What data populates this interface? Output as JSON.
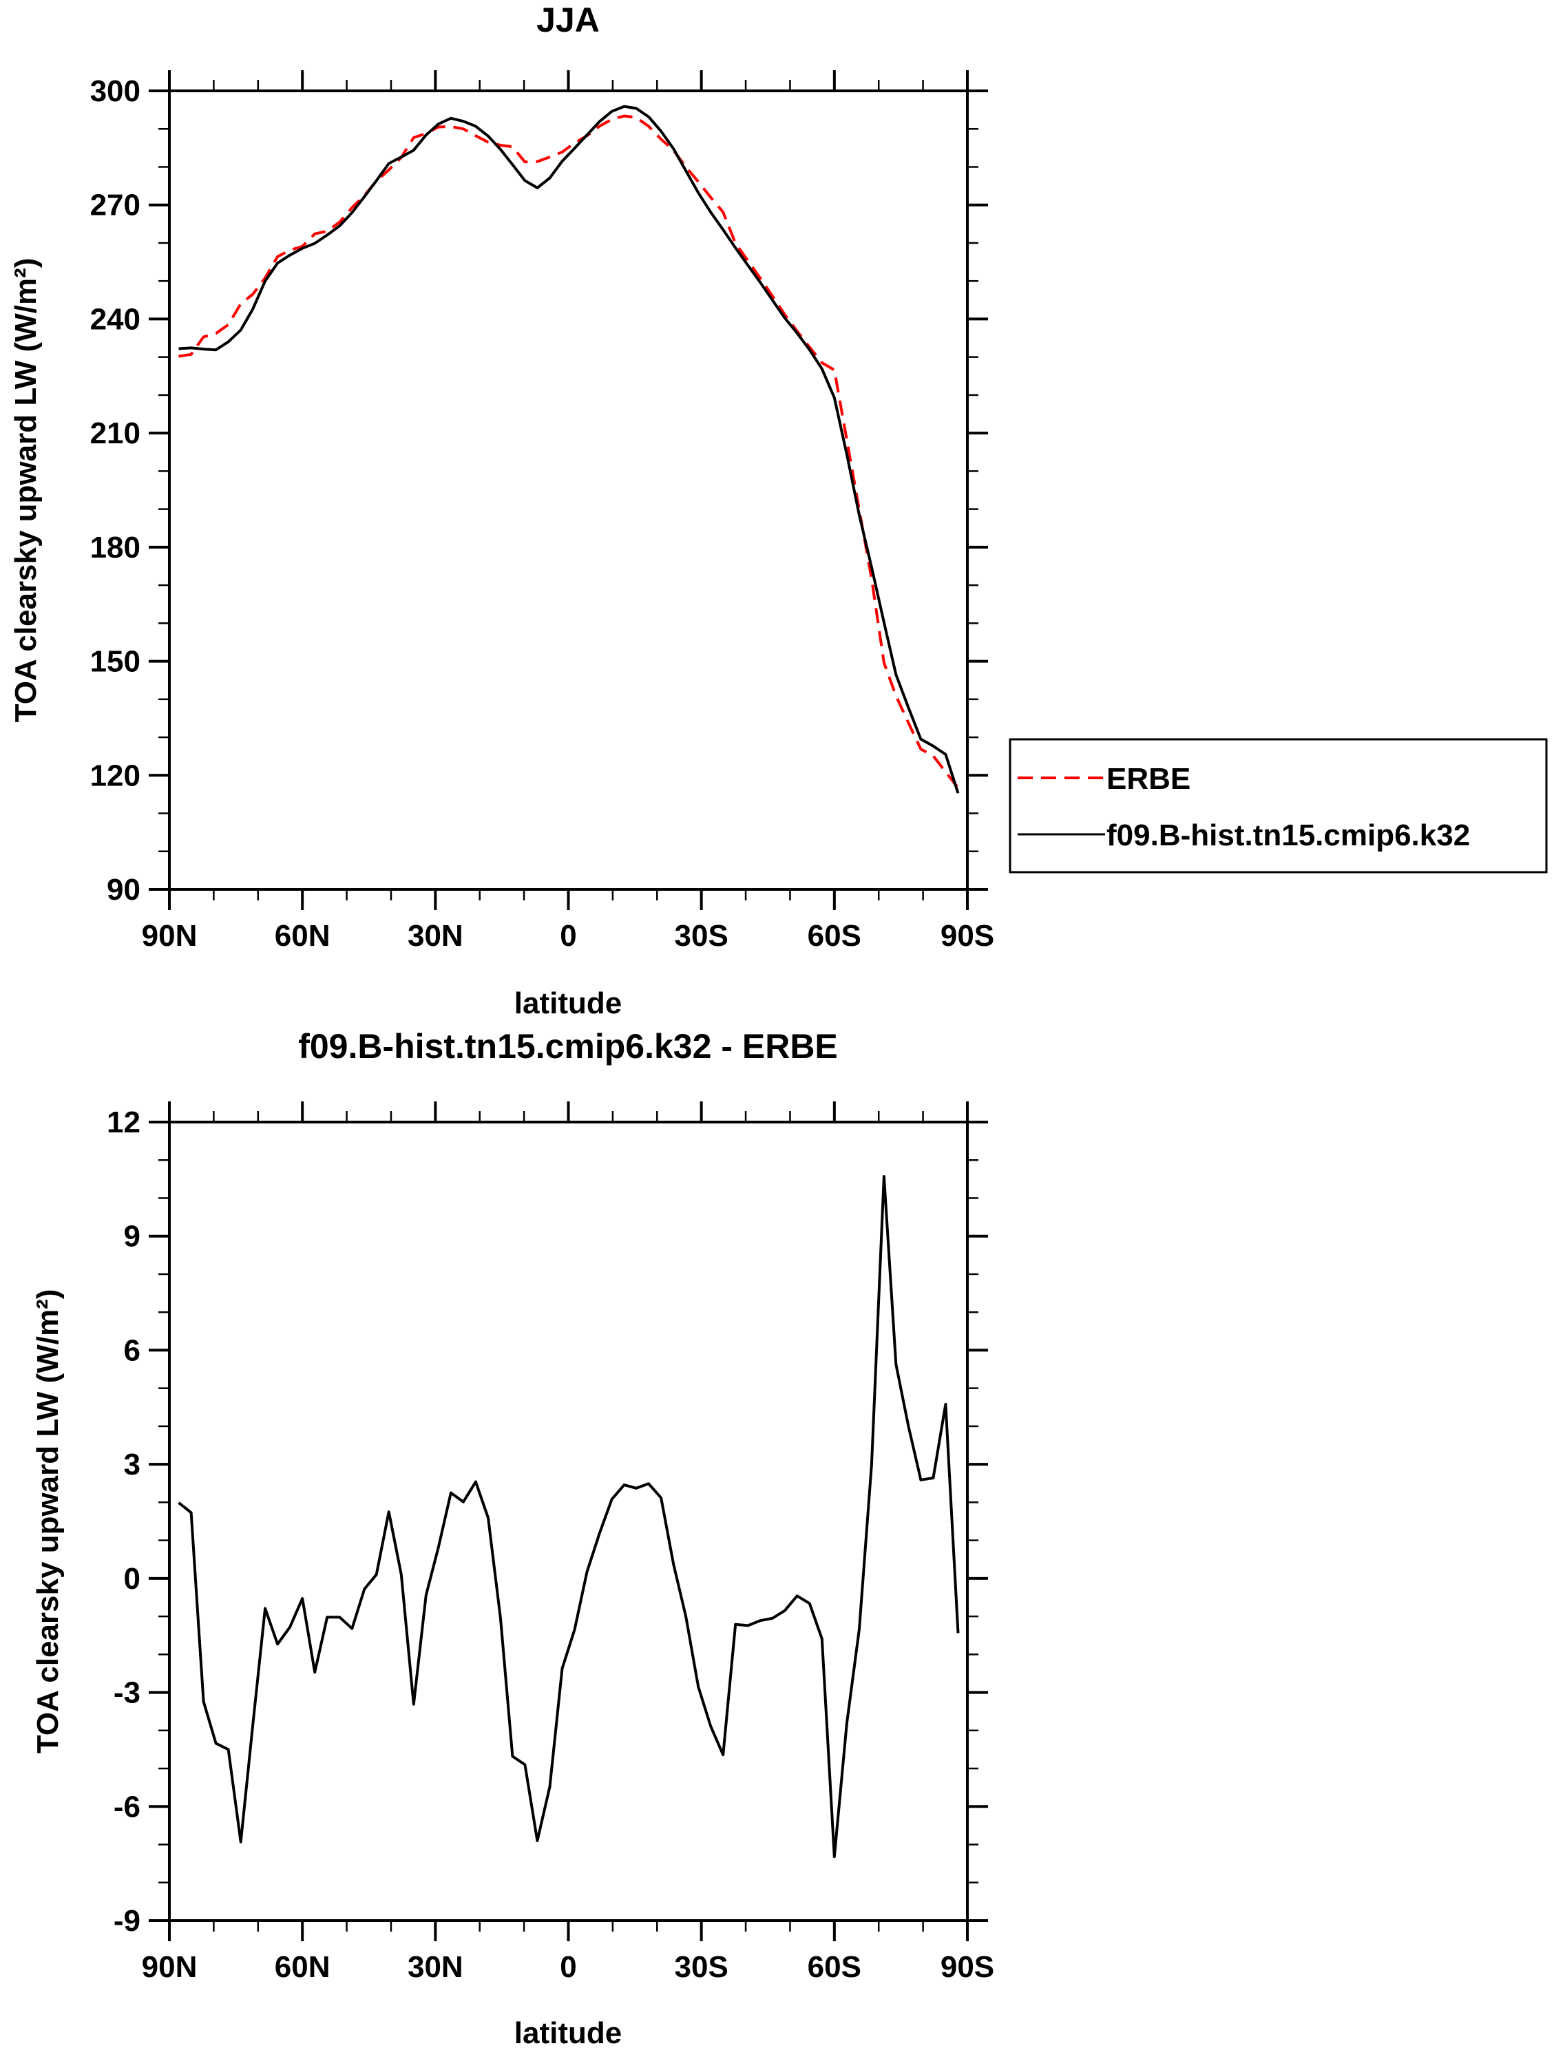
{
  "chart_data": [
    {
      "type": "line",
      "title": "JJA",
      "xlabel": "latitude",
      "ylabel": "TOA clearsky upward LW (W/m²)",
      "xlim": [
        90,
        -90
      ],
      "ylim": [
        90,
        300
      ],
      "xticks": [
        90,
        60,
        30,
        0,
        -30,
        -60,
        -90
      ],
      "xtick_labels": [
        "90N",
        "60N",
        "30N",
        "0",
        "30S",
        "60S",
        "90S"
      ],
      "yticks": [
        90,
        120,
        150,
        180,
        210,
        240,
        270,
        300
      ],
      "ytick_labels": [
        "90",
        "120",
        "150",
        "180",
        "210",
        "240",
        "270",
        "300"
      ],
      "x_minor_step": 10,
      "y_minor_step": 10,
      "grid": false,
      "legend": {
        "placement": "right",
        "entries": [
          "ERBE",
          "f09.B-hist.tn15.cmip6.k32"
        ]
      },
      "series": [
        {
          "name": "ERBE",
          "color": "#ff0000",
          "dash": "dashed",
          "values": [
            230.2,
            230.7,
            235.3,
            236.2,
            238.5,
            244.0,
            246.5,
            250.8,
            256.4,
            258.1,
            259.1,
            262.4,
            263.1,
            265.5,
            269.3,
            272.5,
            276.3,
            279.2,
            282.5,
            287.7,
            288.8,
            290.5,
            290.6,
            290.0,
            288.2,
            286.5,
            285.7,
            285.3,
            281.3,
            281.4,
            282.6,
            283.9,
            286.3,
            288.2,
            290.7,
            292.5,
            293.4,
            293.0,
            290.7,
            287.3,
            284.4,
            280.0,
            276.1,
            272.0,
            268.1,
            259.9,
            255.3,
            250.7,
            246.1,
            241.2,
            236.8,
            232.6,
            228.5,
            226.6,
            208.2,
            189.9,
            171.7,
            149.6,
            140.9,
            133.8,
            126.9,
            125.1,
            120.9,
            116.7
          ]
        },
        {
          "name": "f09.B-hist.tn15.cmip6.k32",
          "color": "#000000",
          "dash": "solid",
          "values": [
            232.2,
            232.4,
            232.1,
            231.9,
            234.0,
            237.1,
            242.6,
            250.0,
            254.7,
            256.8,
            258.6,
            259.9,
            262.1,
            264.5,
            268.0,
            272.2,
            276.4,
            280.9,
            282.6,
            284.4,
            288.4,
            291.3,
            292.8,
            292.0,
            290.7,
            288.1,
            284.6,
            280.6,
            276.4,
            274.5,
            277.1,
            281.5,
            284.9,
            288.4,
            291.9,
            294.6,
            295.9,
            295.4,
            293.2,
            289.4,
            284.8,
            279.0,
            273.2,
            268.1,
            263.5,
            258.7,
            254.1,
            249.6,
            245.0,
            240.3,
            236.3,
            231.9,
            226.9,
            219.3,
            204.4,
            188.5,
            174.7,
            160.2,
            146.5,
            137.8,
            129.5,
            127.7,
            125.5,
            115.3
          ]
        }
      ]
    },
    {
      "type": "line",
      "title": "f09.B-hist.tn15.cmip6.k32 - ERBE",
      "xlabel": "latitude",
      "ylabel": "TOA clearsky upward LW (W/m²)",
      "xlim": [
        90,
        -90
      ],
      "ylim": [
        -9,
        12
      ],
      "xticks": [
        90,
        60,
        30,
        0,
        -30,
        -60,
        -90
      ],
      "xtick_labels": [
        "90N",
        "60N",
        "30N",
        "0",
        "30S",
        "60S",
        "90S"
      ],
      "yticks": [
        -9,
        -6,
        -3,
        0,
        3,
        6,
        9,
        12
      ],
      "ytick_labels": [
        "-9",
        "-6",
        "-3",
        "0",
        "3",
        "6",
        "9",
        "12"
      ],
      "x_minor_step": 10,
      "y_minor_step": 1,
      "grid": false,
      "series": [
        {
          "name": "difference",
          "color": "#000000",
          "dash": "solid",
          "values": [
            1.99,
            1.73,
            -3.24,
            -4.34,
            -4.5,
            -6.93,
            -3.87,
            -0.79,
            -1.73,
            -1.28,
            -0.53,
            -2.47,
            -1.02,
            -1.02,
            -1.32,
            -0.28,
            0.1,
            1.75,
            0.1,
            -3.31,
            -0.44,
            0.82,
            2.25,
            2.01,
            2.54,
            1.59,
            -1.06,
            -4.68,
            -4.9,
            -6.9,
            -5.48,
            -2.37,
            -1.35,
            0.17,
            1.18,
            2.08,
            2.46,
            2.37,
            2.49,
            2.12,
            0.38,
            -1.0,
            -2.85,
            -3.89,
            -4.64,
            -1.21,
            -1.24,
            -1.11,
            -1.05,
            -0.85,
            -0.46,
            -0.66,
            -1.59,
            -7.32,
            -3.81,
            -1.35,
            2.99,
            10.57,
            5.63,
            4.0,
            2.59,
            2.64,
            4.58,
            -1.44
          ]
        }
      ]
    }
  ],
  "latitudes": [
    87.9,
    85.1,
    82.3,
    79.5,
    76.7,
    73.9,
    71.2,
    68.4,
    65.6,
    62.8,
    60.0,
    57.2,
    54.4,
    51.6,
    48.8,
    46.0,
    43.3,
    40.5,
    37.7,
    34.9,
    32.1,
    29.3,
    26.5,
    23.7,
    20.9,
    18.1,
    15.3,
    12.6,
    9.8,
    7.0,
    4.2,
    1.4,
    -1.4,
    -4.2,
    -7.0,
    -9.8,
    -12.6,
    -15.3,
    -18.1,
    -20.9,
    -23.7,
    -26.5,
    -29.3,
    -32.1,
    -34.9,
    -37.7,
    -40.5,
    -43.3,
    -46.0,
    -48.8,
    -51.6,
    -54.4,
    -57.2,
    -60.0,
    -62.8,
    -65.6,
    -68.4,
    -71.2,
    -73.9,
    -76.7,
    -79.5,
    -82.3,
    -85.1,
    -87.9
  ]
}
